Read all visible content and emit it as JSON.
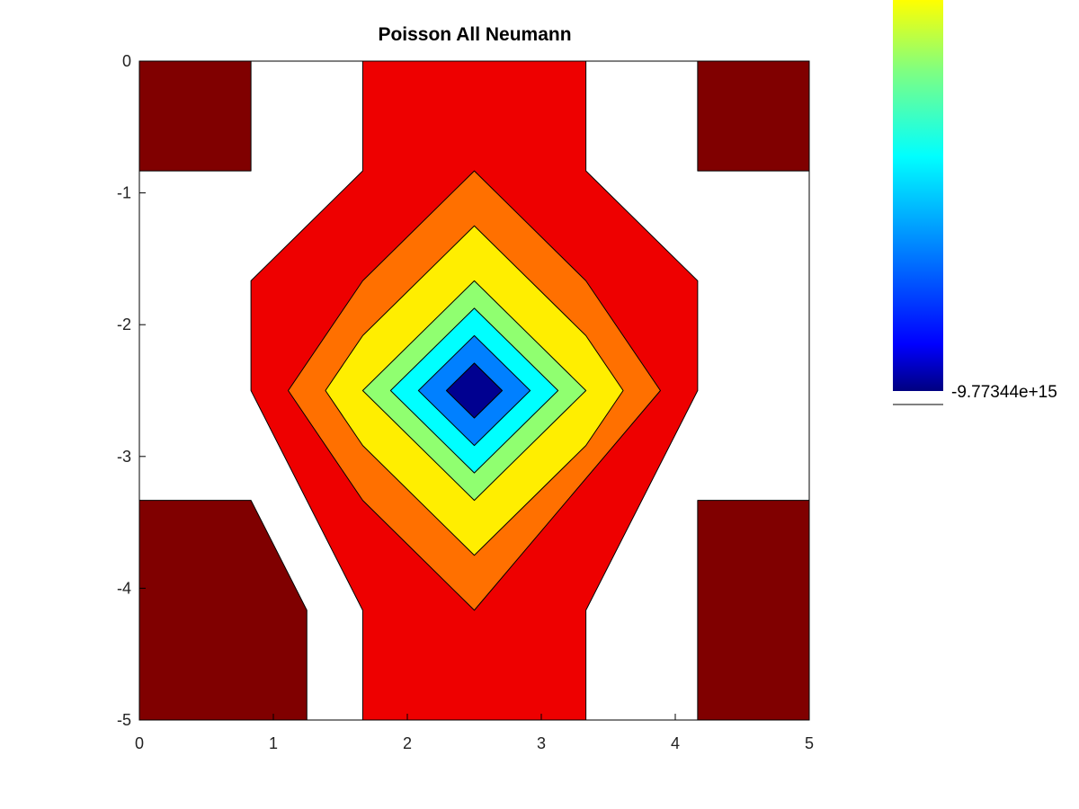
{
  "chart_data": {
    "type": "contour",
    "title": "Poisson All Neumann",
    "xlabel": "",
    "ylabel": "",
    "xlim": [
      0,
      5
    ],
    "ylim": [
      -5,
      0
    ],
    "xticks": [
      "0",
      "1",
      "2",
      "3",
      "4",
      "5"
    ],
    "yticks": [
      "0",
      "-1",
      "-2",
      "-3",
      "-4",
      "-5"
    ],
    "colormap": "jet",
    "grid": false,
    "center_minimum": [
      2.5,
      -2.5
    ],
    "colorbar": {
      "placement": "right",
      "label_min": "-9.77344e+15"
    },
    "filled_regions": [
      {
        "level": 0,
        "color": "#800000",
        "points": [
          [
            0,
            0
          ],
          [
            0.833,
            0
          ],
          [
            0.833,
            -0.833
          ],
          [
            0,
            -0.833
          ]
        ]
      },
      {
        "level": 0,
        "color": "#800000",
        "points": [
          [
            4.167,
            0
          ],
          [
            5,
            0
          ],
          [
            5,
            -0.833
          ],
          [
            4.167,
            -0.833
          ]
        ]
      },
      {
        "level": 0,
        "color": "#800000",
        "points": [
          [
            0,
            -3.333
          ],
          [
            0.833,
            -3.333
          ],
          [
            1.25,
            -4.167
          ],
          [
            1.25,
            -5
          ],
          [
            0,
            -5
          ]
        ]
      },
      {
        "level": 0,
        "color": "#800000",
        "points": [
          [
            4.167,
            -3.333
          ],
          [
            5,
            -3.333
          ],
          [
            5,
            -5
          ],
          [
            4.167,
            -5
          ]
        ]
      },
      {
        "level": 1,
        "color": "#ee0000",
        "points": [
          [
            1.667,
            0
          ],
          [
            1.667,
            -0.833
          ],
          [
            0.833,
            -1.667
          ],
          [
            0.833,
            -2.5
          ],
          [
            1.667,
            -4.167
          ],
          [
            1.667,
            -5
          ],
          [
            3.333,
            -5
          ],
          [
            3.333,
            -4.167
          ],
          [
            4.167,
            -2.5
          ],
          [
            4.167,
            -1.667
          ],
          [
            3.333,
            -0.833
          ],
          [
            3.333,
            0
          ]
        ]
      },
      {
        "level": 2,
        "color": "#ff7000",
        "points": [
          [
            2.5,
            -0.833
          ],
          [
            3.333,
            -1.667
          ],
          [
            3.889,
            -2.5
          ],
          [
            2.5,
            -4.167
          ],
          [
            1.667,
            -3.333
          ],
          [
            1.111,
            -2.5
          ],
          [
            1.667,
            -1.667
          ]
        ]
      },
      {
        "level": 3,
        "color": "#ffee00",
        "points": [
          [
            2.5,
            -1.25
          ],
          [
            3.333,
            -2.083
          ],
          [
            3.611,
            -2.5
          ],
          [
            3.333,
            -2.917
          ],
          [
            2.5,
            -3.75
          ],
          [
            1.667,
            -2.917
          ],
          [
            1.389,
            -2.5
          ],
          [
            1.667,
            -2.083
          ]
        ]
      },
      {
        "level": 4,
        "color": "#90ff70",
        "points": [
          [
            2.5,
            -1.667
          ],
          [
            3.333,
            -2.5
          ],
          [
            2.5,
            -3.333
          ],
          [
            1.667,
            -2.5
          ]
        ]
      },
      {
        "level": 5,
        "color": "#00ffff",
        "points": [
          [
            2.5,
            -1.875
          ],
          [
            3.125,
            -2.5
          ],
          [
            2.5,
            -3.125
          ],
          [
            1.875,
            -2.5
          ]
        ]
      },
      {
        "level": 6,
        "color": "#0080ff",
        "points": [
          [
            2.5,
            -2.083
          ],
          [
            2.917,
            -2.5
          ],
          [
            2.5,
            -2.917
          ],
          [
            2.083,
            -2.5
          ]
        ]
      },
      {
        "level": 7,
        "color": "#0000ff",
        "points": [
          [
            2.5,
            -2.292
          ],
          [
            2.708,
            -2.5
          ],
          [
            2.5,
            -2.708
          ],
          [
            2.292,
            -2.5
          ]
        ]
      },
      {
        "level": 8,
        "color": "#000090",
        "points": []
      }
    ]
  }
}
